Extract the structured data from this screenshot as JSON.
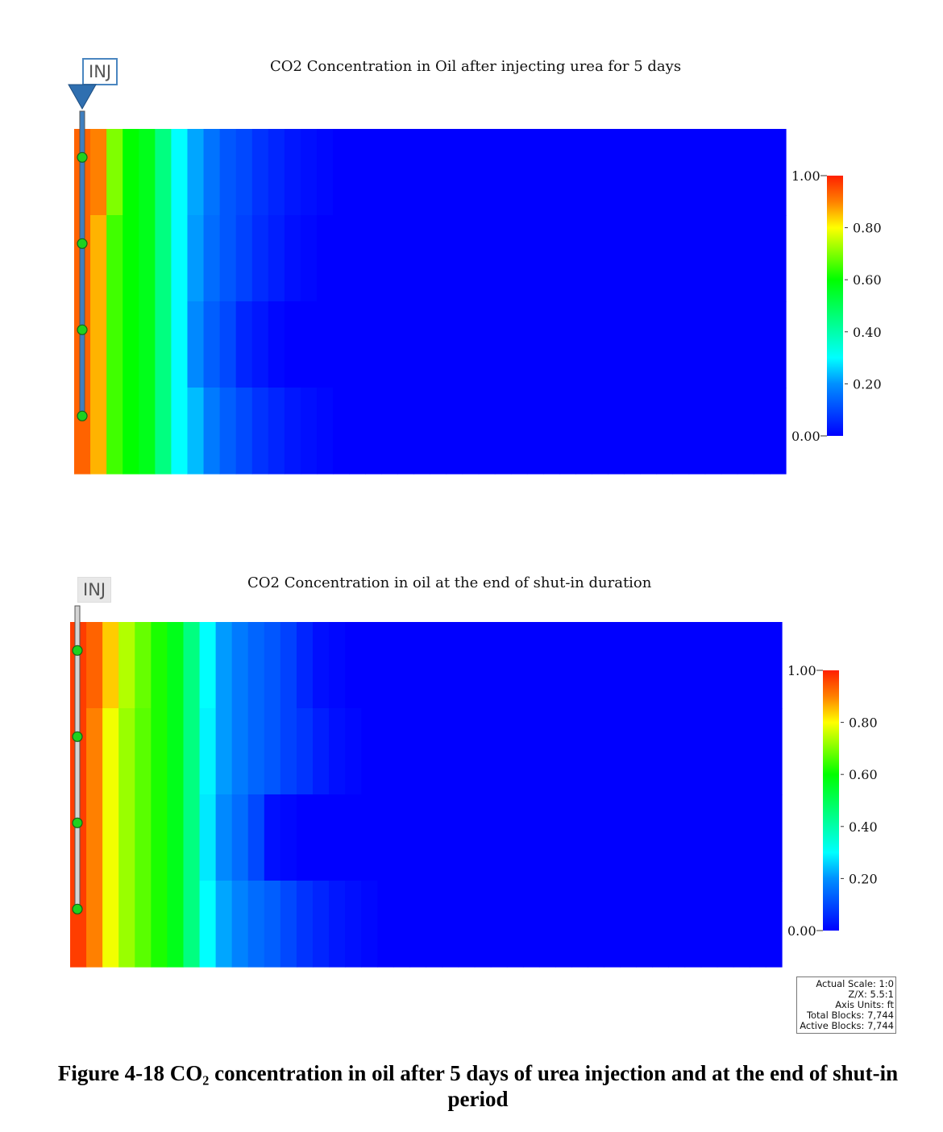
{
  "colorscale": {
    "min": 0.0,
    "max": 1.0,
    "stops": [
      [
        0,
        "#0000ff"
      ],
      [
        0.2,
        "#0090ff"
      ],
      [
        0.3,
        "#00ffff"
      ],
      [
        0.45,
        "#00ff80"
      ],
      [
        0.6,
        "#00ff00"
      ],
      [
        0.8,
        "#ffff00"
      ],
      [
        0.9,
        "#ff8000"
      ],
      [
        1,
        "#ff2000"
      ]
    ]
  },
  "chart_data": [
    {
      "type": "heatmap",
      "title": "CO2 Concentration in Oil after injecting urea for 5 days",
      "well_label": "INJ",
      "columns": 44,
      "layers": 4,
      "colorbar": {
        "ticks": [
          "1.00",
          "0.80",
          "0.60",
          "0.40",
          "0.20",
          "0.00"
        ],
        "tick_values": [
          1.0,
          0.8,
          0.6,
          0.4,
          0.2,
          0.0
        ]
      },
      "values": [
        [
          0.93,
          0.9,
          0.7,
          0.6,
          0.57,
          0.45,
          0.3,
          0.22,
          0.16,
          0.12,
          0.1,
          0.07,
          0.05,
          0.03,
          0.02,
          0.01
        ],
        [
          0.93,
          0.86,
          0.65,
          0.6,
          0.57,
          0.45,
          0.3,
          0.21,
          0.15,
          0.12,
          0.09,
          0.06,
          0.04,
          0.02,
          0.01
        ],
        [
          0.93,
          0.86,
          0.65,
          0.6,
          0.57,
          0.45,
          0.3,
          0.19,
          0.13,
          0.1,
          0.05,
          0.03,
          0.01
        ],
        [
          0.93,
          0.86,
          0.65,
          0.6,
          0.57,
          0.45,
          0.3,
          0.24,
          0.17,
          0.13,
          0.1,
          0.07,
          0.05,
          0.03,
          0.02,
          0.01
        ]
      ]
    },
    {
      "type": "heatmap",
      "title": "CO2 Concentration in oil at the end of shut-in duration",
      "well_label": "INJ",
      "columns": 44,
      "layers": 4,
      "colorbar": {
        "ticks": [
          "1.00",
          "0.80",
          "0.60",
          "0.40",
          "0.20",
          "0.00"
        ],
        "tick_values": [
          1.0,
          0.8,
          0.6,
          0.4,
          0.2,
          0.0
        ]
      },
      "values": [
        [
          0.97,
          0.93,
          0.84,
          0.74,
          0.68,
          0.62,
          0.57,
          0.45,
          0.3,
          0.21,
          0.17,
          0.14,
          0.12,
          0.09,
          0.05,
          0.02,
          0.01
        ],
        [
          0.97,
          0.9,
          0.79,
          0.72,
          0.67,
          0.62,
          0.57,
          0.45,
          0.29,
          0.21,
          0.17,
          0.14,
          0.12,
          0.09,
          0.07,
          0.04,
          0.02,
          0.01
        ],
        [
          0.97,
          0.9,
          0.79,
          0.72,
          0.67,
          0.62,
          0.57,
          0.45,
          0.28,
          0.19,
          0.15,
          0.1,
          0.02,
          0.01
        ],
        [
          0.97,
          0.9,
          0.79,
          0.72,
          0.67,
          0.62,
          0.57,
          0.45,
          0.3,
          0.22,
          0.18,
          0.15,
          0.13,
          0.1,
          0.07,
          0.05,
          0.03,
          0.02,
          0.01
        ]
      ]
    }
  ],
  "scale_info": [
    "Actual Scale: 1:0",
    "Z/X: 5.5:1",
    "Axis Units: ft",
    "Total Blocks: 7,744",
    "Active Blocks: 7,744"
  ],
  "caption": {
    "line1": "Figure 4-18 CO₂ concentration in oil after 5 days of urea injection and at the end of shut-in",
    "line2": "period"
  }
}
